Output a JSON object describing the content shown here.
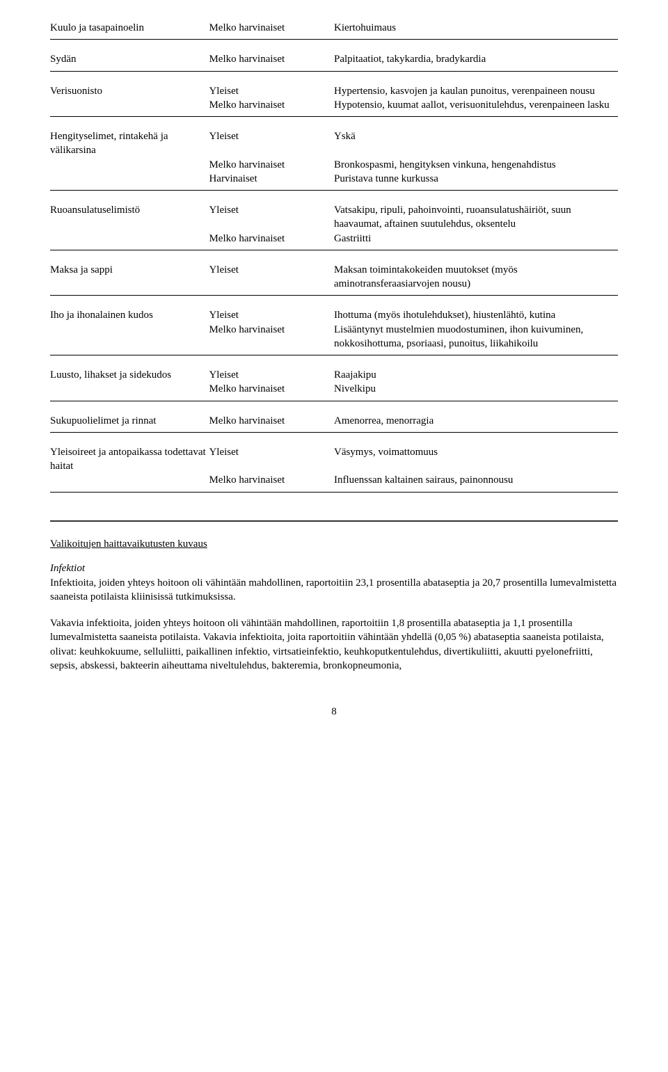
{
  "table": {
    "rows": [
      {
        "soc": "Kuulo ja tasapainoelin",
        "freq": "Melko harvinaiset",
        "effects": "Kiertohuimaus",
        "top": true,
        "bot": true,
        "first": true
      },
      {
        "soc": "Sydän",
        "freq": "Melko harvinaiset",
        "effects": "Palpitaatiot, takykardia, bradykardia",
        "top": true,
        "bot": true
      },
      {
        "soc": "Verisuonisto",
        "freq": "Yleiset",
        "effects": "Hypertensio, kasvojen ja kaulan punoitus, verenpaineen nousu",
        "top": true
      },
      {
        "soc": "",
        "freq": "Melko harvinaiset",
        "effects": "Hypotensio, kuumat aallot, verisuonitulehdus, verenpaineen lasku",
        "bot": true
      },
      {
        "soc": "Hengityselimet, rintakehä ja välikarsina",
        "freq": "Yleiset",
        "effects": "Yskä",
        "top": true
      },
      {
        "soc": "",
        "freq": "Melko harvinaiset",
        "effects": "Bronkospasmi, hengityksen vinkuna, hengenahdistus"
      },
      {
        "soc": "",
        "freq": "Harvinaiset",
        "effects": "Puristava tunne kurkussa",
        "bot": true
      },
      {
        "soc": "Ruoansulatuselimistö",
        "freq": "Yleiset",
        "effects": "Vatsakipu, ripuli, pahoinvointi, ruoansulatushäiriöt, suun haavaumat, aftainen suutulehdus, oksentelu",
        "top": true
      },
      {
        "soc": "",
        "freq": "Melko harvinaiset",
        "effects": "Gastriitti",
        "bot": true
      },
      {
        "soc": "Maksa ja sappi",
        "freq": "Yleiset",
        "effects": "Maksan toimintakokeiden muutokset (myös aminotransferaasiarvojen nousu)",
        "top": true,
        "bot": true
      },
      {
        "soc": "Iho ja ihonalainen kudos",
        "freq": "Yleiset",
        "effects": "Ihottuma (myös ihotulehdukset), hiustenlähtö, kutina",
        "top": true
      },
      {
        "soc": "",
        "freq": "Melko harvinaiset",
        "effects": "Lisääntynyt mustelmien muodostuminen, ihon kuivuminen, nokkosihottuma, psoriaasi, punoitus, liikahikoilu",
        "bot": true
      },
      {
        "soc": "Luusto, lihakset ja sidekudos",
        "freq": "Yleiset",
        "effects": "Raajakipu",
        "top": true
      },
      {
        "soc": "",
        "freq": "Melko harvinaiset",
        "effects": "Nivelkipu",
        "bot": true
      },
      {
        "soc": "Sukupuolielimet ja rinnat",
        "freq": "Melko harvinaiset",
        "effects": "Amenorrea, menorragia",
        "top": true,
        "bot": true
      },
      {
        "soc": "Yleisoireet ja antopaikassa todettavat haitat",
        "freq": "Yleiset",
        "effects": "Väsymys, voimattomuus",
        "top": true
      },
      {
        "soc": "",
        "freq": "Melko harvinaiset",
        "effects": "Influenssan kaltainen sairaus, painonnousu",
        "bot": true
      }
    ]
  },
  "section": {
    "heading": "Valikoitujen haittavaikutusten kuvaus",
    "sub_italic": "Infektiot",
    "p1": "Infektioita, joiden yhteys hoitoon oli vähintään mahdollinen, raportoitiin 23,1 prosentilla abataseptia ja 20,7 prosentilla lumevalmistetta saaneista potilaista kliinisissä tutkimuksissa.",
    "p2": "Vakavia infektioita, joiden yhteys hoitoon oli vähintään mahdollinen, raportoitiin 1,8 prosentilla abataseptia ja 1,1 prosentilla lumevalmistetta saaneista potilaista. Vakavia infektioita, joita raportoitiin vähintään yhdellä (0,05 %) abataseptia saaneista potilaista, olivat: keuhkokuume, selluliitti, paikallinen infektio, virtsatieinfektio, keuhkoputkentulehdus, divertikuliitti, akuutti pyelonefriitti, sepsis, abskessi, bakteerin aiheuttama niveltulehdus, bakteremia, bronkopneumonia,"
  },
  "page_number": "8"
}
